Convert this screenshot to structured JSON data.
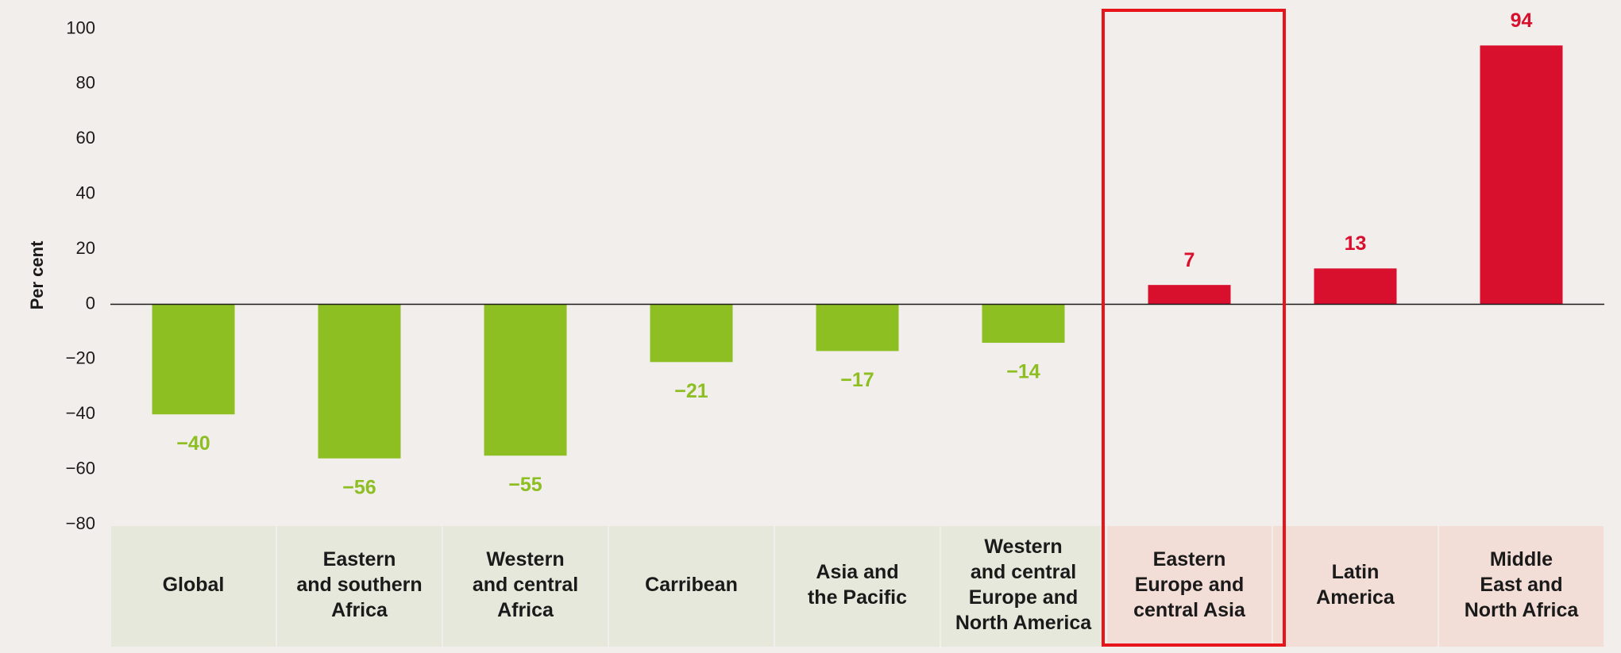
{
  "chart_data": {
    "type": "bar",
    "y_label": "Per cent",
    "categories": [
      "Global",
      "Eastern\nand southern\nAfrica",
      "Western\nand central\nAfrica",
      "Carribean",
      "Asia and\nthe Pacific",
      "Western\nand central\nEurope and\nNorth America",
      "Eastern\nEurope and\ncentral Asia",
      "Latin\nAmerica",
      "Middle\nEast and\nNorth Africa"
    ],
    "values": [
      -40,
      -56,
      -55,
      -21,
      -17,
      -14,
      7,
      13,
      94
    ],
    "value_labels": [
      "−40",
      "−56",
      "−55",
      "−21",
      "−17",
      "−14",
      "7",
      "13",
      "94"
    ],
    "colors": [
      "#8dbe22",
      "#8dbe22",
      "#8dbe22",
      "#8dbe22",
      "#8dbe22",
      "#8dbe22",
      "#d90f2e",
      "#d90f2e",
      "#d90f2e"
    ],
    "category_backgrounds": [
      "#e6e8dc",
      "#e6e8dc",
      "#e6e8dc",
      "#e6e8dc",
      "#e6e8dc",
      "#e6e8dc",
      "#f2ddd7",
      "#f2ddd7",
      "#f2ddd7"
    ],
    "ylim": [
      -80,
      100
    ],
    "yticks": [
      {
        "value": -80,
        "label": "−80"
      },
      {
        "value": -60,
        "label": "−60"
      },
      {
        "value": -40,
        "label": "−40"
      },
      {
        "value": -20,
        "label": "−20"
      },
      0,
      20,
      40,
      60,
      80,
      100
    ]
  }
}
